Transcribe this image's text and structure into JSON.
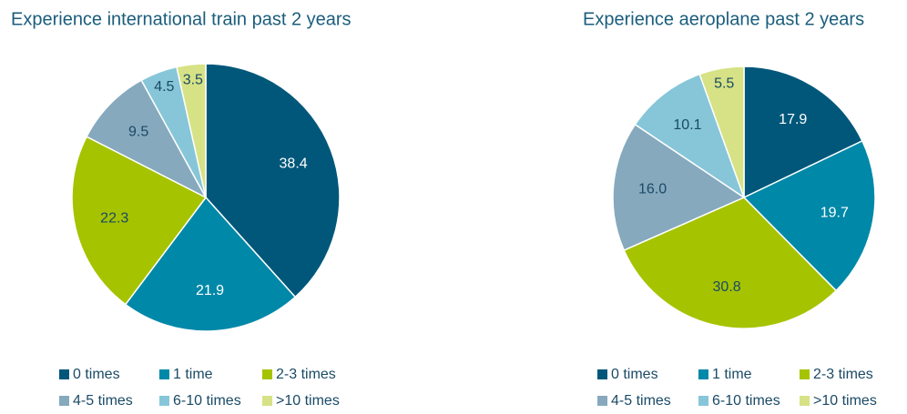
{
  "chart_data": [
    {
      "type": "pie",
      "title": "Experience  international  train past 2 years",
      "categories": [
        "0 times",
        "1 time",
        "2-3 times",
        "4-5 times",
        "6-10 times",
        ">10 times"
      ],
      "values": [
        38.4,
        21.9,
        22.3,
        9.5,
        4.5,
        3.5
      ],
      "colors": [
        "#00577a",
        "#0088a8",
        "#a6c300",
        "#86a9bd",
        "#86c6d8",
        "#d6e285"
      ]
    },
    {
      "type": "pie",
      "title": "Experience  aeroplane  past 2 years",
      "categories": [
        "0 times",
        "1 time",
        "2-3 times",
        "4-5 times",
        "6-10 times",
        ">10 times"
      ],
      "values": [
        17.9,
        19.7,
        30.8,
        16.0,
        10.1,
        5.5
      ],
      "value_labels": [
        "17.9",
        "19.7",
        "30.8",
        "16.0",
        "10.1",
        "5.5"
      ],
      "colors": [
        "#00577a",
        "#0088a8",
        "#a6c300",
        "#86a9bd",
        "#86c6d8",
        "#d6e285"
      ]
    }
  ]
}
